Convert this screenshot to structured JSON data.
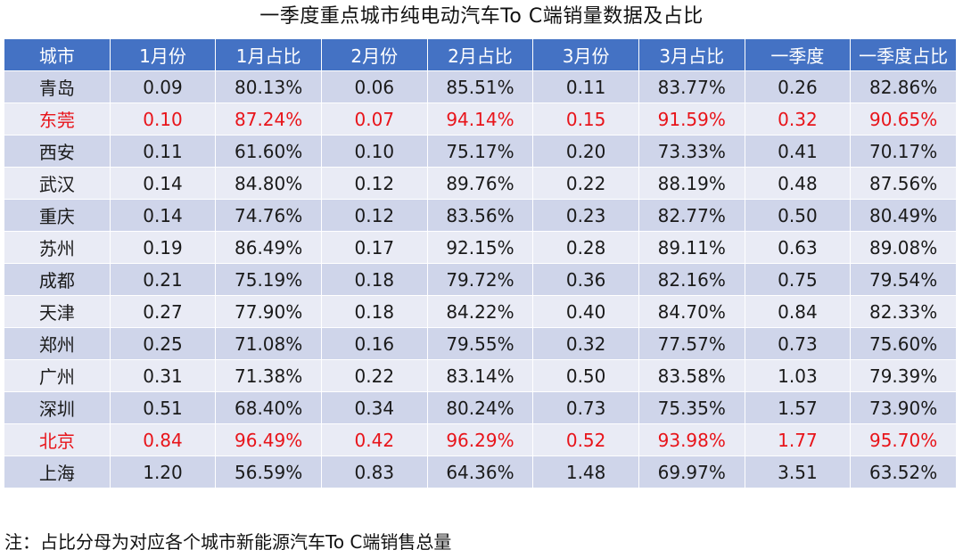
{
  "title": "一季度重点城市纯电动汽车To C端销量数据及占比",
  "table": {
    "headers": [
      "城市",
      "1月份",
      "1月占比",
      "2月份",
      "2月占比",
      "3月份",
      "3月占比",
      "一季度",
      "一季度占比"
    ],
    "rows": [
      {
        "cells": [
          "青岛",
          "0.09",
          "80.13%",
          "0.06",
          "85.51%",
          "0.11",
          "83.77%",
          "0.26",
          "82.86%"
        ],
        "highlight": false
      },
      {
        "cells": [
          "东莞",
          "0.10",
          "87.24%",
          "0.07",
          "94.14%",
          "0.15",
          "91.59%",
          "0.32",
          "90.65%"
        ],
        "highlight": true
      },
      {
        "cells": [
          "西安",
          "0.11",
          "61.60%",
          "0.10",
          "75.17%",
          "0.20",
          "73.33%",
          "0.41",
          "70.17%"
        ],
        "highlight": false
      },
      {
        "cells": [
          "武汉",
          "0.14",
          "84.80%",
          "0.12",
          "89.76%",
          "0.22",
          "88.19%",
          "0.48",
          "87.56%"
        ],
        "highlight": false
      },
      {
        "cells": [
          "重庆",
          "0.14",
          "74.76%",
          "0.12",
          "83.56%",
          "0.23",
          "82.77%",
          "0.50",
          "80.49%"
        ],
        "highlight": false
      },
      {
        "cells": [
          "苏州",
          "0.19",
          "86.49%",
          "0.17",
          "92.15%",
          "0.28",
          "89.11%",
          "0.63",
          "89.08%"
        ],
        "highlight": false
      },
      {
        "cells": [
          "成都",
          "0.21",
          "75.19%",
          "0.18",
          "79.72%",
          "0.36",
          "82.16%",
          "0.75",
          "79.54%"
        ],
        "highlight": false
      },
      {
        "cells": [
          "天津",
          "0.27",
          "77.90%",
          "0.18",
          "84.22%",
          "0.40",
          "84.70%",
          "0.84",
          "82.33%"
        ],
        "highlight": false
      },
      {
        "cells": [
          "郑州",
          "0.25",
          "71.08%",
          "0.16",
          "79.55%",
          "0.32",
          "77.57%",
          "0.73",
          "75.60%"
        ],
        "highlight": false
      },
      {
        "cells": [
          "广州",
          "0.31",
          "71.38%",
          "0.22",
          "83.14%",
          "0.50",
          "83.58%",
          "1.03",
          "79.39%"
        ],
        "highlight": false
      },
      {
        "cells": [
          "深圳",
          "0.51",
          "68.40%",
          "0.34",
          "80.24%",
          "0.73",
          "75.35%",
          "1.57",
          "73.90%"
        ],
        "highlight": false
      },
      {
        "cells": [
          "北京",
          "0.84",
          "96.49%",
          "0.42",
          "96.29%",
          "0.52",
          "93.98%",
          "1.77",
          "95.70%"
        ],
        "highlight": true
      },
      {
        "cells": [
          "上海",
          "1.20",
          "56.59%",
          "0.83",
          "64.36%",
          "1.48",
          "69.97%",
          "3.51",
          "63.52%"
        ],
        "highlight": false
      }
    ]
  },
  "note": "注：占比分母为对应各个城市新能源汽车To C端销售总量",
  "colors": {
    "header_bg": "#4472c4",
    "row_dark": "#cfd5ea",
    "row_light": "#e9ebf5",
    "highlight_text": "#e8141a"
  }
}
